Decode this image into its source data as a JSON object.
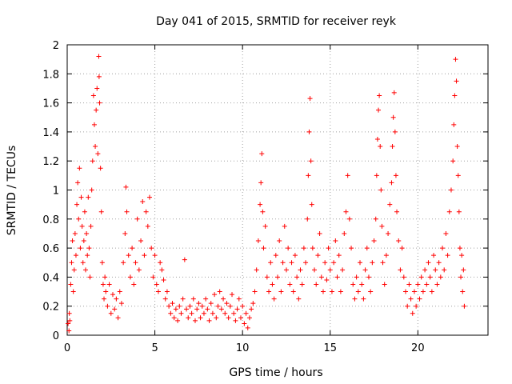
{
  "chart_data": {
    "type": "scatter",
    "title": "Day 041 of 2015, SRMTID for receiver reyk",
    "xlabel": "GPS time / hours",
    "ylabel": "SRMTID / TECUs",
    "xlim": [
      0,
      24
    ],
    "ylim": [
      0,
      2
    ],
    "x_ticks": [
      0,
      5,
      10,
      15,
      20
    ],
    "x_tick_labels": [
      "0",
      "5",
      "10",
      "15",
      "20"
    ],
    "y_ticks": [
      0,
      0.2,
      0.4,
      0.6,
      0.8,
      1,
      1.2,
      1.4,
      1.6,
      1.8,
      2
    ],
    "y_tick_labels": [
      "0",
      "0.2",
      "0.4",
      "0.6",
      "0.8",
      "1",
      "1.2",
      "1.4",
      "1.6",
      "1.8",
      "2"
    ],
    "grid": true,
    "marker": "+",
    "series": [
      {
        "name": "SRMTID",
        "color": "#ff0000",
        "points": [
          [
            0.05,
            0.08
          ],
          [
            0.1,
            0.03
          ],
          [
            0.12,
            0.15
          ],
          [
            0.15,
            0.1
          ],
          [
            0.2,
            0.35
          ],
          [
            0.25,
            0.5
          ],
          [
            0.3,
            0.65
          ],
          [
            0.35,
            0.3
          ],
          [
            0.4,
            0.45
          ],
          [
            0.45,
            0.7
          ],
          [
            0.5,
            0.55
          ],
          [
            0.55,
            0.9
          ],
          [
            0.6,
            1.05
          ],
          [
            0.65,
            0.8
          ],
          [
            0.7,
            1.15
          ],
          [
            0.75,
            0.6
          ],
          [
            0.8,
            0.95
          ],
          [
            0.85,
            0.75
          ],
          [
            0.9,
            0.5
          ],
          [
            0.95,
            0.65
          ],
          [
            1.0,
            0.85
          ],
          [
            1.05,
            0.45
          ],
          [
            1.1,
            0.7
          ],
          [
            1.15,
            0.55
          ],
          [
            1.2,
            0.95
          ],
          [
            1.25,
            0.6
          ],
          [
            1.3,
            0.4
          ],
          [
            1.35,
            0.75
          ],
          [
            1.4,
            1.0
          ],
          [
            1.45,
            1.2
          ],
          [
            1.5,
            1.65
          ],
          [
            1.55,
            1.45
          ],
          [
            1.6,
            1.3
          ],
          [
            1.65,
            1.55
          ],
          [
            1.7,
            1.7
          ],
          [
            1.75,
            1.25
          ],
          [
            1.8,
            1.92
          ],
          [
            1.82,
            1.78
          ],
          [
            1.85,
            1.6
          ],
          [
            1.9,
            1.15
          ],
          [
            1.95,
            0.85
          ],
          [
            2.0,
            0.5
          ],
          [
            2.05,
            0.35
          ],
          [
            2.1,
            0.25
          ],
          [
            2.15,
            0.4
          ],
          [
            2.2,
            0.3
          ],
          [
            2.3,
            0.2
          ],
          [
            2.4,
            0.35
          ],
          [
            2.5,
            0.15
          ],
          [
            2.6,
            0.28
          ],
          [
            2.7,
            0.18
          ],
          [
            2.8,
            0.25
          ],
          [
            2.9,
            0.12
          ],
          [
            3.0,
            0.3
          ],
          [
            3.1,
            0.22
          ],
          [
            3.2,
            0.5
          ],
          [
            3.3,
            0.7
          ],
          [
            3.35,
            1.02
          ],
          [
            3.4,
            0.85
          ],
          [
            3.5,
            0.55
          ],
          [
            3.6,
            0.4
          ],
          [
            3.7,
            0.6
          ],
          [
            3.8,
            0.35
          ],
          [
            3.9,
            0.5
          ],
          [
            4.0,
            0.8
          ],
          [
            4.1,
            0.45
          ],
          [
            4.2,
            0.65
          ],
          [
            4.3,
            0.92
          ],
          [
            4.4,
            0.55
          ],
          [
            4.5,
            0.85
          ],
          [
            4.6,
            0.75
          ],
          [
            4.7,
            0.95
          ],
          [
            4.8,
            0.6
          ],
          [
            4.9,
            0.4
          ],
          [
            5.0,
            0.55
          ],
          [
            5.1,
            0.35
          ],
          [
            5.2,
            0.3
          ],
          [
            5.3,
            0.5
          ],
          [
            5.4,
            0.45
          ],
          [
            5.5,
            0.38
          ],
          [
            5.6,
            0.25
          ],
          [
            5.7,
            0.3
          ],
          [
            5.8,
            0.2
          ],
          [
            5.9,
            0.15
          ],
          [
            6.0,
            0.22
          ],
          [
            6.1,
            0.12
          ],
          [
            6.2,
            0.18
          ],
          [
            6.3,
            0.1
          ],
          [
            6.4,
            0.2
          ],
          [
            6.5,
            0.15
          ],
          [
            6.6,
            0.25
          ],
          [
            6.7,
            0.52
          ],
          [
            6.8,
            0.18
          ],
          [
            6.9,
            0.12
          ],
          [
            7.0,
            0.2
          ],
          [
            7.1,
            0.15
          ],
          [
            7.2,
            0.25
          ],
          [
            7.3,
            0.1
          ],
          [
            7.4,
            0.18
          ],
          [
            7.5,
            0.22
          ],
          [
            7.6,
            0.12
          ],
          [
            7.7,
            0.2
          ],
          [
            7.8,
            0.15
          ],
          [
            7.9,
            0.25
          ],
          [
            8.0,
            0.18
          ],
          [
            8.1,
            0.1
          ],
          [
            8.2,
            0.22
          ],
          [
            8.3,
            0.15
          ],
          [
            8.4,
            0.28
          ],
          [
            8.5,
            0.12
          ],
          [
            8.6,
            0.2
          ],
          [
            8.7,
            0.3
          ],
          [
            8.8,
            0.18
          ],
          [
            8.9,
            0.25
          ],
          [
            9.0,
            0.15
          ],
          [
            9.1,
            0.22
          ],
          [
            9.2,
            0.12
          ],
          [
            9.3,
            0.2
          ],
          [
            9.4,
            0.28
          ],
          [
            9.5,
            0.15
          ],
          [
            9.6,
            0.1
          ],
          [
            9.7,
            0.18
          ],
          [
            9.8,
            0.25
          ],
          [
            9.9,
            0.12
          ],
          [
            10.0,
            0.2
          ],
          [
            10.1,
            0.08
          ],
          [
            10.2,
            0.15
          ],
          [
            10.3,
            0.05
          ],
          [
            10.4,
            0.12
          ],
          [
            10.5,
            0.18
          ],
          [
            10.6,
            0.22
          ],
          [
            10.7,
            0.3
          ],
          [
            10.8,
            0.45
          ],
          [
            10.9,
            0.65
          ],
          [
            11.0,
            0.9
          ],
          [
            11.05,
            1.05
          ],
          [
            11.1,
            1.25
          ],
          [
            11.15,
            0.85
          ],
          [
            11.2,
            0.6
          ],
          [
            11.3,
            0.75
          ],
          [
            11.4,
            0.4
          ],
          [
            11.5,
            0.3
          ],
          [
            11.6,
            0.5
          ],
          [
            11.7,
            0.35
          ],
          [
            11.8,
            0.25
          ],
          [
            11.9,
            0.55
          ],
          [
            12.0,
            0.4
          ],
          [
            12.1,
            0.65
          ],
          [
            12.2,
            0.3
          ],
          [
            12.3,
            0.5
          ],
          [
            12.4,
            0.75
          ],
          [
            12.5,
            0.45
          ],
          [
            12.6,
            0.6
          ],
          [
            12.7,
            0.35
          ],
          [
            12.8,
            0.5
          ],
          [
            12.9,
            0.3
          ],
          [
            13.0,
            0.55
          ],
          [
            13.1,
            0.4
          ],
          [
            13.2,
            0.25
          ],
          [
            13.3,
            0.45
          ],
          [
            13.4,
            0.35
          ],
          [
            13.5,
            0.6
          ],
          [
            13.6,
            0.5
          ],
          [
            13.7,
            0.8
          ],
          [
            13.75,
            1.1
          ],
          [
            13.8,
            1.4
          ],
          [
            13.85,
            1.63
          ],
          [
            13.9,
            1.2
          ],
          [
            13.95,
            0.9
          ],
          [
            14.0,
            0.6
          ],
          [
            14.1,
            0.45
          ],
          [
            14.2,
            0.35
          ],
          [
            14.3,
            0.55
          ],
          [
            14.4,
            0.7
          ],
          [
            14.5,
            0.4
          ],
          [
            14.6,
            0.3
          ],
          [
            14.7,
            0.5
          ],
          [
            14.8,
            0.38
          ],
          [
            14.9,
            0.6
          ],
          [
            15.0,
            0.45
          ],
          [
            15.1,
            0.3
          ],
          [
            15.2,
            0.5
          ],
          [
            15.3,
            0.65
          ],
          [
            15.4,
            0.4
          ],
          [
            15.5,
            0.55
          ],
          [
            15.6,
            0.3
          ],
          [
            15.7,
            0.45
          ],
          [
            15.8,
            0.7
          ],
          [
            15.9,
            0.85
          ],
          [
            16.0,
            1.1
          ],
          [
            16.1,
            0.8
          ],
          [
            16.2,
            0.6
          ],
          [
            16.3,
            0.35
          ],
          [
            16.4,
            0.25
          ],
          [
            16.5,
            0.4
          ],
          [
            16.6,
            0.3
          ],
          [
            16.7,
            0.5
          ],
          [
            16.8,
            0.35
          ],
          [
            16.9,
            0.25
          ],
          [
            17.0,
            0.45
          ],
          [
            17.1,
            0.6
          ],
          [
            17.2,
            0.4
          ],
          [
            17.3,
            0.3
          ],
          [
            17.4,
            0.5
          ],
          [
            17.5,
            0.65
          ],
          [
            17.6,
            0.8
          ],
          [
            17.65,
            1.1
          ],
          [
            17.7,
            1.35
          ],
          [
            17.75,
            1.55
          ],
          [
            17.8,
            1.65
          ],
          [
            17.85,
            1.3
          ],
          [
            17.9,
            1.0
          ],
          [
            17.95,
            0.75
          ],
          [
            18.0,
            0.5
          ],
          [
            18.1,
            0.35
          ],
          [
            18.2,
            0.55
          ],
          [
            18.3,
            0.7
          ],
          [
            18.4,
            0.9
          ],
          [
            18.5,
            1.05
          ],
          [
            18.55,
            1.3
          ],
          [
            18.6,
            1.5
          ],
          [
            18.65,
            1.67
          ],
          [
            18.7,
            1.4
          ],
          [
            18.75,
            1.1
          ],
          [
            18.8,
            0.85
          ],
          [
            18.9,
            0.65
          ],
          [
            19.0,
            0.45
          ],
          [
            19.1,
            0.6
          ],
          [
            19.2,
            0.4
          ],
          [
            19.3,
            0.3
          ],
          [
            19.4,
            0.2
          ],
          [
            19.5,
            0.35
          ],
          [
            19.6,
            0.25
          ],
          [
            19.7,
            0.15
          ],
          [
            19.8,
            0.3
          ],
          [
            19.9,
            0.2
          ],
          [
            20.0,
            0.35
          ],
          [
            20.1,
            0.25
          ],
          [
            20.2,
            0.4
          ],
          [
            20.3,
            0.3
          ],
          [
            20.4,
            0.45
          ],
          [
            20.5,
            0.35
          ],
          [
            20.6,
            0.5
          ],
          [
            20.7,
            0.4
          ],
          [
            20.8,
            0.3
          ],
          [
            20.9,
            0.55
          ],
          [
            21.0,
            0.45
          ],
          [
            21.1,
            0.35
          ],
          [
            21.2,
            0.5
          ],
          [
            21.3,
            0.4
          ],
          [
            21.4,
            0.6
          ],
          [
            21.5,
            0.45
          ],
          [
            21.6,
            0.7
          ],
          [
            21.7,
            0.55
          ],
          [
            21.8,
            0.85
          ],
          [
            21.9,
            1.0
          ],
          [
            22.0,
            1.2
          ],
          [
            22.05,
            1.45
          ],
          [
            22.1,
            1.65
          ],
          [
            22.15,
            1.9
          ],
          [
            22.2,
            1.75
          ],
          [
            22.25,
            1.3
          ],
          [
            22.3,
            1.1
          ],
          [
            22.35,
            0.85
          ],
          [
            22.4,
            0.6
          ],
          [
            22.45,
            0.4
          ],
          [
            22.5,
            0.55
          ],
          [
            22.55,
            0.3
          ],
          [
            22.6,
            0.45
          ],
          [
            22.65,
            0.2
          ]
        ]
      }
    ]
  }
}
